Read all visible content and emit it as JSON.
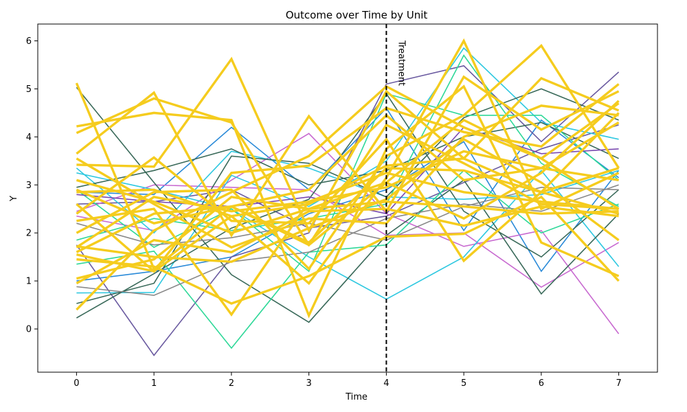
{
  "chart_data": {
    "type": "line",
    "title": "Outcome over Time by Unit",
    "xlabel": "Time",
    "ylabel": "Y",
    "x": [
      0,
      1,
      2,
      3,
      4,
      5,
      6,
      7
    ],
    "xlim": [
      -0.5,
      7.5
    ],
    "ylim": [
      -0.9,
      6.35
    ],
    "xticks": [
      "0",
      "1",
      "2",
      "3",
      "4",
      "5",
      "6",
      "7"
    ],
    "yticks": [
      "0",
      "1",
      "2",
      "3",
      "4",
      "5",
      "6"
    ],
    "grid": false,
    "treatment_time": 4,
    "treatment_label": "Treatment",
    "colors": {
      "treated": "#f5cc1e",
      "control": [
        "#2a8ad8",
        "#6a5aa0",
        "#c86ad0",
        "#2ec8e0",
        "#3a6a5a",
        "#2ed898",
        "#888888",
        "#7a4ab0"
      ]
    },
    "control_series": [
      {
        "color": "#2a8ad8",
        "values": [
          2.85,
          2.8,
          4.2,
          2.9,
          4.6,
          2.05,
          4.35,
          3.15
        ]
      },
      {
        "color": "#2a8ad8",
        "values": [
          1.0,
          1.2,
          1.5,
          2.4,
          2.9,
          3.9,
          1.2,
          3.3
        ]
      },
      {
        "color": "#6a5aa0",
        "values": [
          1.75,
          -0.55,
          1.5,
          2.0,
          5.1,
          5.48,
          3.9,
          5.35
        ]
      },
      {
        "color": "#6a5aa0",
        "values": [
          2.6,
          2.65,
          2.9,
          2.1,
          2.35,
          3.05,
          3.75,
          4.25
        ]
      },
      {
        "color": "#c86ad0",
        "values": [
          2.35,
          2.05,
          3.1,
          4.07,
          2.4,
          1.72,
          2.05,
          -0.1
        ]
      },
      {
        "color": "#c86ad0",
        "values": [
          2.45,
          3.0,
          2.95,
          2.9,
          1.95,
          2.0,
          0.87,
          1.8
        ]
      },
      {
        "color": "#2ec8e0",
        "values": [
          3.25,
          2.9,
          2.5,
          1.5,
          0.62,
          1.5,
          3.3,
          1.3
        ]
      },
      {
        "color": "#2ec8e0",
        "values": [
          0.75,
          0.76,
          3.2,
          2.55,
          3.5,
          5.85,
          4.3,
          3.95
        ]
      },
      {
        "color": "#2ec8e0",
        "values": [
          3.35,
          2.0,
          3.7,
          3.35,
          2.75,
          2.7,
          2.8,
          3.3
        ]
      },
      {
        "color": "#3a6a5a",
        "values": [
          5.03,
          3.05,
          1.13,
          0.14,
          1.95,
          3.1,
          0.73,
          2.4
        ]
      },
      {
        "color": "#3a6a5a",
        "values": [
          0.23,
          1.15,
          2.1,
          2.7,
          4.9,
          2.45,
          1.5,
          2.9
        ]
      },
      {
        "color": "#3a6a5a",
        "values": [
          0.53,
          0.95,
          3.6,
          3.45,
          2.75,
          4.4,
          5.0,
          4.35
        ]
      },
      {
        "color": "#3a6a5a",
        "values": [
          2.95,
          3.3,
          3.75,
          3.0,
          3.3,
          4.0,
          4.3,
          3.55
        ]
      },
      {
        "color": "#2ed898",
        "values": [
          1.35,
          1.62,
          -0.4,
          1.6,
          1.75,
          3.3,
          2.0,
          2.6
        ]
      },
      {
        "color": "#2ed898",
        "values": [
          2.9,
          1.7,
          2.5,
          1.2,
          4.9,
          4.45,
          4.45,
          3.1
        ]
      },
      {
        "color": "#2ed898",
        "values": [
          1.85,
          2.3,
          2.05,
          2.3,
          2.6,
          5.7,
          3.45,
          2.55
        ]
      },
      {
        "color": "#888888",
        "values": [
          0.88,
          0.7,
          1.4,
          1.6,
          2.3,
          2.6,
          2.45,
          3.0
        ]
      },
      {
        "color": "#888888",
        "values": [
          2.2,
          1.75,
          1.9,
          2.2,
          1.85,
          2.55,
          2.95,
          2.9
        ]
      },
      {
        "color": "#7a4ab0",
        "values": [
          2.8,
          2.65,
          2.55,
          2.75,
          2.4,
          4.2,
          3.65,
          3.75
        ]
      }
    ],
    "treated_series": [
      {
        "values": [
          5.12,
          1.25,
          2.55,
          1.75,
          4.25,
          3.45,
          2.6,
          2.5
        ]
      },
      {
        "values": [
          4.22,
          4.5,
          4.35,
          0.28,
          3.75,
          5.05,
          1.8,
          1.1
        ]
      },
      {
        "values": [
          4.08,
          4.8,
          4.3,
          1.75,
          3.05,
          4.35,
          3.55,
          4.7
        ]
      },
      {
        "values": [
          3.65,
          4.92,
          1.95,
          4.43,
          2.45,
          5.25,
          4.15,
          4.95
        ]
      },
      {
        "values": [
          3.42,
          3.38,
          5.62,
          2.05,
          4.95,
          3.55,
          5.22,
          4.55
        ]
      },
      {
        "values": [
          3.1,
          2.65,
          2.0,
          2.5,
          2.65,
          2.55,
          2.4,
          2.45
        ]
      },
      {
        "values": [
          2.85,
          2.9,
          2.35,
          0.95,
          3.15,
          6.0,
          2.5,
          3.25
        ]
      },
      {
        "values": [
          2.6,
          1.2,
          3.25,
          3.4,
          4.6,
          4.1,
          3.8,
          5.1
        ]
      },
      {
        "values": [
          2.4,
          3.57,
          2.25,
          2.2,
          3.95,
          1.42,
          2.85,
          4.5
        ]
      },
      {
        "values": [
          2.25,
          2.5,
          0.3,
          2.65,
          2.95,
          3.7,
          3.35,
          4.3
        ]
      },
      {
        "values": [
          2.0,
          2.85,
          2.9,
          1.25,
          3.6,
          4.45,
          5.9,
          3.35
        ]
      },
      {
        "values": [
          1.72,
          1.5,
          1.4,
          2.1,
          2.7,
          3.95,
          3.05,
          1.85
        ]
      },
      {
        "values": [
          1.6,
          2.4,
          2.55,
          1.8,
          3.35,
          3.3,
          2.85,
          3.35
        ]
      },
      {
        "values": [
          1.45,
          1.3,
          0.53,
          1.1,
          1.92,
          1.98,
          2.75,
          1.0
        ]
      },
      {
        "values": [
          1.05,
          1.45,
          2.75,
          2.5,
          3.05,
          2.3,
          3.25,
          4.75
        ]
      },
      {
        "values": [
          0.95,
          1.85,
          1.6,
          2.45,
          2.5,
          2.15,
          2.55,
          2.35
        ]
      },
      {
        "values": [
          0.4,
          2.05,
          2.85,
          3.6,
          5.05,
          4.2,
          3.55,
          2.5
        ]
      },
      {
        "values": [
          1.7,
          2.75,
          2.45,
          2.65,
          3.25,
          2.85,
          2.65,
          2.5
        ]
      },
      {
        "values": [
          2.9,
          2.2,
          2.55,
          2.9,
          4.45,
          3.1,
          3.35,
          3.1
        ]
      },
      {
        "values": [
          3.55,
          2.6,
          1.7,
          2.3,
          2.2,
          4.0,
          4.65,
          4.45
        ]
      },
      {
        "values": [
          1.55,
          1.2,
          2.35,
          2.6,
          3.4,
          3.55,
          2.85,
          2.4
        ]
      }
    ]
  }
}
